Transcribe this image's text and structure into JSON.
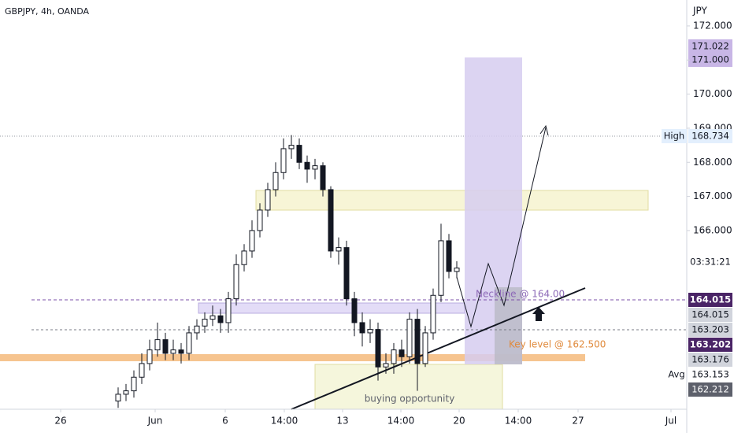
{
  "chart_data": {
    "type": "candlestick",
    "title": "GBPJPY, 4h, OANDA",
    "currency": "JPY",
    "x": [
      0,
      1,
      2,
      3,
      4,
      5,
      6,
      7,
      8,
      9,
      10,
      11,
      12,
      13,
      14,
      15,
      16,
      17,
      18,
      19,
      20,
      21,
      22,
      23,
      24,
      25,
      26,
      27,
      28,
      29,
      30,
      31,
      32,
      33,
      34,
      35,
      36,
      37,
      38,
      39,
      40,
      41,
      42,
      43
    ],
    "open": [
      161.0,
      161.2,
      161.3,
      161.7,
      162.1,
      162.5,
      162.8,
      162.4,
      162.5,
      162.4,
      163.0,
      163.2,
      163.4,
      163.5,
      163.3,
      164.0,
      165.0,
      165.4,
      166.0,
      166.6,
      167.2,
      167.7,
      168.4,
      168.5,
      168.0,
      167.8,
      167.9,
      167.2,
      165.4,
      165.5,
      164.0,
      163.3,
      163.0,
      163.1,
      162.0,
      162.1,
      162.5,
      162.3,
      163.4,
      162.1,
      163.0,
      164.1,
      165.7,
      164.8
    ],
    "high": [
      161.4,
      161.5,
      161.9,
      162.4,
      162.8,
      163.3,
      163.0,
      162.8,
      162.7,
      163.2,
      163.4,
      163.6,
      163.8,
      163.7,
      164.2,
      165.3,
      165.6,
      166.3,
      166.8,
      167.4,
      168.0,
      168.7,
      168.8,
      168.7,
      168.2,
      168.1,
      168.0,
      167.3,
      165.8,
      165.7,
      164.2,
      163.6,
      163.4,
      163.3,
      162.4,
      162.7,
      162.8,
      163.6,
      163.7,
      163.2,
      164.3,
      166.2,
      165.9,
      165.1
    ],
    "low": [
      160.8,
      161.0,
      161.1,
      161.5,
      161.9,
      162.3,
      162.2,
      162.2,
      162.1,
      162.2,
      162.8,
      163.0,
      163.2,
      163.0,
      163.0,
      163.8,
      164.8,
      165.2,
      165.8,
      166.4,
      167.0,
      167.5,
      168.1,
      167.8,
      167.4,
      167.5,
      167.0,
      165.2,
      165.0,
      163.8,
      162.9,
      162.6,
      162.7,
      161.6,
      161.8,
      161.8,
      162.0,
      162.1,
      161.3,
      162.0,
      162.8,
      163.9,
      164.6,
      164.6
    ],
    "close": [
      161.2,
      161.3,
      161.7,
      162.1,
      162.5,
      162.8,
      162.4,
      162.5,
      162.4,
      163.0,
      163.2,
      163.4,
      163.5,
      163.3,
      164.0,
      165.0,
      165.4,
      166.0,
      166.6,
      167.2,
      167.7,
      168.4,
      168.5,
      168.0,
      167.8,
      167.9,
      167.2,
      165.4,
      165.5,
      164.0,
      163.3,
      163.0,
      163.1,
      162.0,
      162.1,
      162.5,
      162.3,
      163.4,
      162.1,
      163.0,
      164.1,
      165.7,
      164.8,
      164.9
    ],
    "colors": {
      "up": "#ffffff",
      "down": "#131722",
      "outline": "#131722"
    },
    "xlim": [
      -15,
      72.2
    ],
    "xticks": [
      {
        "value": -7.3,
        "label": "26"
      },
      {
        "value": 4.7,
        "label": "Jun"
      },
      {
        "value": 13.6,
        "label": "6"
      },
      {
        "value": 21.1,
        "label": "14:00"
      },
      {
        "value": 28.5,
        "label": "13"
      },
      {
        "value": 35.9,
        "label": "14:00"
      },
      {
        "value": 43.3,
        "label": "20"
      },
      {
        "value": 50.8,
        "label": "14:00"
      },
      {
        "value": 58.4,
        "label": "27"
      },
      {
        "value": 70.2,
        "label": "Jul"
      }
    ],
    "ylim": [
      160.76,
      172.76
    ],
    "yticks": [
      {
        "value": 166,
        "label": "166.000"
      },
      {
        "value": 167,
        "label": "167.000"
      },
      {
        "value": 168,
        "label": "168.000"
      },
      {
        "value": 169,
        "label": "169.000"
      },
      {
        "value": 170,
        "label": "170.000"
      },
      {
        "value": 171,
        "label": "171.000"
      },
      {
        "value": 172,
        "label": "172.000"
      }
    ],
    "grid": false,
    "annotations": [
      "Neckline @ 164.00",
      "Key level @ 162.500",
      "buying opportunity"
    ],
    "price_labels": [
      "171.022",
      "171.000",
      "168.734",
      "03:31:21",
      "164.015",
      "164.015",
      "163.203",
      "163.202",
      "163.176",
      "163.153",
      "162.212"
    ],
    "price_label_tags": [
      "High",
      "Avg"
    ]
  }
}
